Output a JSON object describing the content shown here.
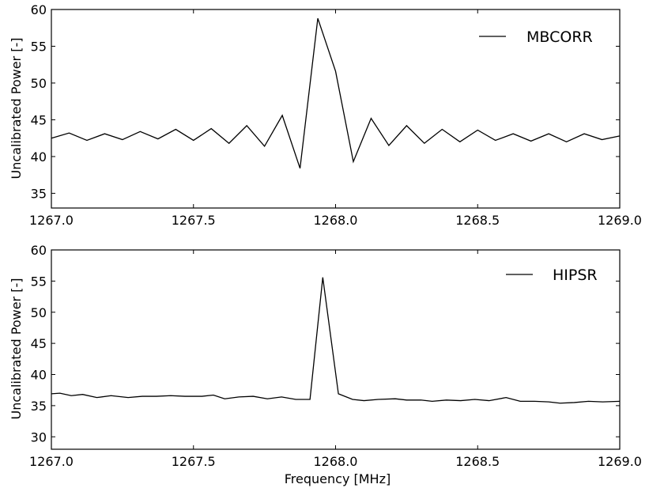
{
  "chart_data": [
    {
      "type": "line",
      "xlabel": "",
      "ylabel": "Uncalibrated Power [-]",
      "xlim": [
        1267.0,
        1269.0
      ],
      "ylim": [
        33,
        60
      ],
      "xticks": [
        "1267.0",
        "1267.5",
        "1268.0",
        "1268.5",
        "1269.0"
      ],
      "yticks": [
        "35",
        "40",
        "45",
        "50",
        "55",
        "60"
      ],
      "grid": false,
      "legend_position": "top-right",
      "series": [
        {
          "name": "MBCORR",
          "color": "#000000",
          "x": [
            1267.0,
            1267.0625,
            1267.125,
            1267.1875,
            1267.25,
            1267.3125,
            1267.375,
            1267.4375,
            1267.5,
            1267.5625,
            1267.625,
            1267.6875,
            1267.75,
            1267.8125,
            1267.875,
            1267.9375,
            1268.0,
            1268.0625,
            1268.125,
            1268.1875,
            1268.25,
            1268.3125,
            1268.375,
            1268.4375,
            1268.5,
            1268.5625,
            1268.625,
            1268.6875,
            1268.75,
            1268.8125,
            1268.875,
            1268.9375,
            1269.0
          ],
          "y": [
            42.5,
            43.2,
            42.2,
            43.1,
            42.3,
            43.4,
            42.4,
            43.7,
            42.2,
            43.8,
            41.8,
            44.2,
            41.4,
            45.6,
            38.4,
            58.8,
            51.6,
            39.3,
            45.2,
            41.5,
            44.2,
            41.8,
            43.7,
            42.0,
            43.6,
            42.2,
            43.1,
            42.1,
            43.1,
            42.0,
            43.1,
            42.3,
            42.8
          ]
        }
      ]
    },
    {
      "type": "line",
      "xlabel": "Frequency [MHz]",
      "ylabel": "Uncalibrated Power [-]",
      "xlim": [
        1267.0,
        1269.0
      ],
      "ylim": [
        28,
        60
      ],
      "xticks": [
        "1267.0",
        "1267.5",
        "1268.0",
        "1268.5",
        "1269.0"
      ],
      "yticks": [
        "30",
        "35",
        "40",
        "45",
        "50",
        "55",
        "60"
      ],
      "grid": false,
      "legend_position": "top-right",
      "series": [
        {
          "name": "HIPSR",
          "color": "#000000",
          "x": [
            1267.0,
            1267.03,
            1267.07,
            1267.11,
            1267.16,
            1267.21,
            1267.27,
            1267.32,
            1267.37,
            1267.42,
            1267.47,
            1267.53,
            1267.57,
            1267.61,
            1267.66,
            1267.71,
            1267.76,
            1267.81,
            1267.86,
            1267.91,
            1267.955,
            1268.01,
            1268.06,
            1268.1,
            1268.15,
            1268.21,
            1268.25,
            1268.3,
            1268.34,
            1268.39,
            1268.44,
            1268.49,
            1268.54,
            1268.6,
            1268.65,
            1268.7,
            1268.75,
            1268.79,
            1268.84,
            1268.89,
            1268.94,
            1269.0
          ],
          "y": [
            36.9,
            37.0,
            36.6,
            36.8,
            36.3,
            36.6,
            36.3,
            36.5,
            36.5,
            36.6,
            36.5,
            36.5,
            36.7,
            36.1,
            36.4,
            36.5,
            36.1,
            36.4,
            36.0,
            36.0,
            55.6,
            36.9,
            36.0,
            35.8,
            36.0,
            36.1,
            35.9,
            35.9,
            35.7,
            35.9,
            35.8,
            36.0,
            35.8,
            36.3,
            35.7,
            35.7,
            35.6,
            35.4,
            35.5,
            35.7,
            35.6,
            35.7
          ]
        }
      ]
    }
  ]
}
